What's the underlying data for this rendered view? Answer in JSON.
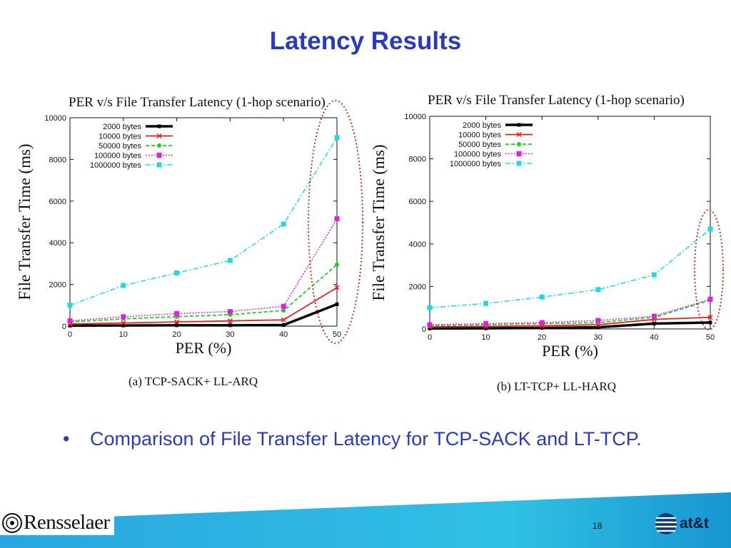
{
  "slide": {
    "title": "Latency Results",
    "bullet": "Comparison of File Transfer Latency for TCP-SACK and LT-TCP.",
    "page_number": "18",
    "logo_left_text": "Rensselaer",
    "logo_right_text": "at&t"
  },
  "colors": {
    "title": "#2a3bb8",
    "s2000": "#000000",
    "s10000": "#e8201b",
    "s50000": "#22cc22",
    "s100000": "#e020e0",
    "s1000000": "#20d8e8",
    "highlight": "#b83a1a"
  },
  "chart_data": [
    {
      "type": "line",
      "title": "PER v/s File Transfer Latency (1-hop scenario)",
      "xlabel": "PER (%)",
      "ylabel": "File Transfer Time (ms)",
      "caption": "(a) TCP-SACK+ LL-ARQ",
      "x": [
        0,
        10,
        20,
        30,
        40,
        50
      ],
      "xlim": [
        0,
        50
      ],
      "ylim": [
        0,
        10000
      ],
      "xticks": [
        0,
        10,
        20,
        30,
        40,
        50
      ],
      "yticks": [
        0,
        2000,
        4000,
        6000,
        8000,
        10000
      ],
      "legend_position": "top-left",
      "grid": false,
      "series": [
        {
          "name": "2000 bytes",
          "values": [
            20,
            30,
            40,
            40,
            50,
            1050
          ]
        },
        {
          "name": "10000 bytes",
          "values": [
            100,
            150,
            200,
            250,
            300,
            1850
          ]
        },
        {
          "name": "50000 bytes",
          "values": [
            200,
            350,
            450,
            550,
            750,
            2950
          ]
        },
        {
          "name": "100000 bytes",
          "values": [
            250,
            450,
            600,
            700,
            950,
            5150
          ]
        },
        {
          "name": "1000000 bytes",
          "values": [
            1000,
            1950,
            2550,
            3150,
            4900,
            9050
          ]
        }
      ]
    },
    {
      "type": "line",
      "title": "PER v/s File Transfer Latency (1-hop scenario)",
      "xlabel": "PER (%)",
      "ylabel": "File Transfer Time (ms)",
      "caption": "(b) LT-TCP+ LL-HARQ",
      "x": [
        0,
        10,
        20,
        30,
        40,
        50
      ],
      "xlim": [
        0,
        50
      ],
      "ylim": [
        0,
        10000
      ],
      "xticks": [
        0,
        10,
        20,
        30,
        40,
        50
      ],
      "yticks": [
        0,
        2000,
        4000,
        6000,
        8000,
        10000
      ],
      "legend_position": "top-left",
      "grid": false,
      "series": [
        {
          "name": "2000 bytes",
          "values": [
            20,
            30,
            50,
            80,
            250,
            300
          ]
        },
        {
          "name": "10000 bytes",
          "values": [
            100,
            120,
            150,
            200,
            450,
            550
          ]
        },
        {
          "name": "50000 bytes",
          "values": [
            150,
            200,
            250,
            300,
            550,
            1350
          ]
        },
        {
          "name": "100000 bytes",
          "values": [
            200,
            250,
            300,
            400,
            600,
            1400
          ]
        },
        {
          "name": "1000000 bytes",
          "values": [
            1000,
            1200,
            1500,
            1850,
            2550,
            4700
          ]
        }
      ]
    }
  ]
}
